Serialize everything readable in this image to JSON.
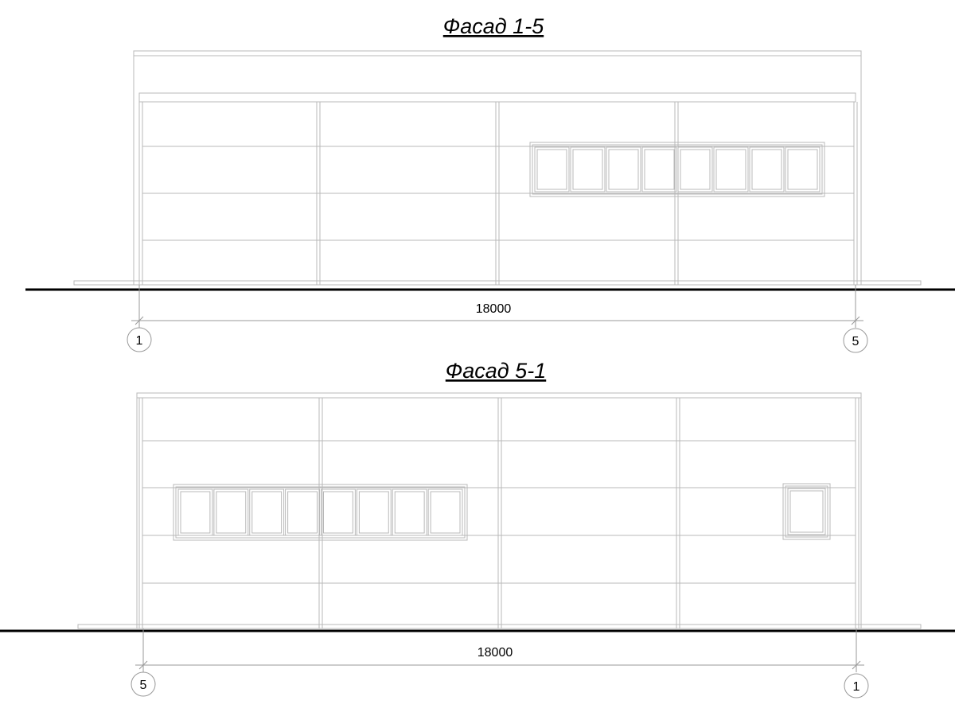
{
  "facade_top": {
    "title": "Фасад 1-5",
    "dimension": "18000",
    "axis_left": "1",
    "axis_right": "5",
    "window_panes": 8
  },
  "facade_bottom": {
    "title": "Фасад 5-1",
    "dimension": "18000",
    "axis_left": "5",
    "axis_right": "1",
    "window_panes": 8,
    "small_window_panes": 1
  },
  "colors": {
    "lines": "#b8b8b8",
    "ground": "#000000"
  }
}
